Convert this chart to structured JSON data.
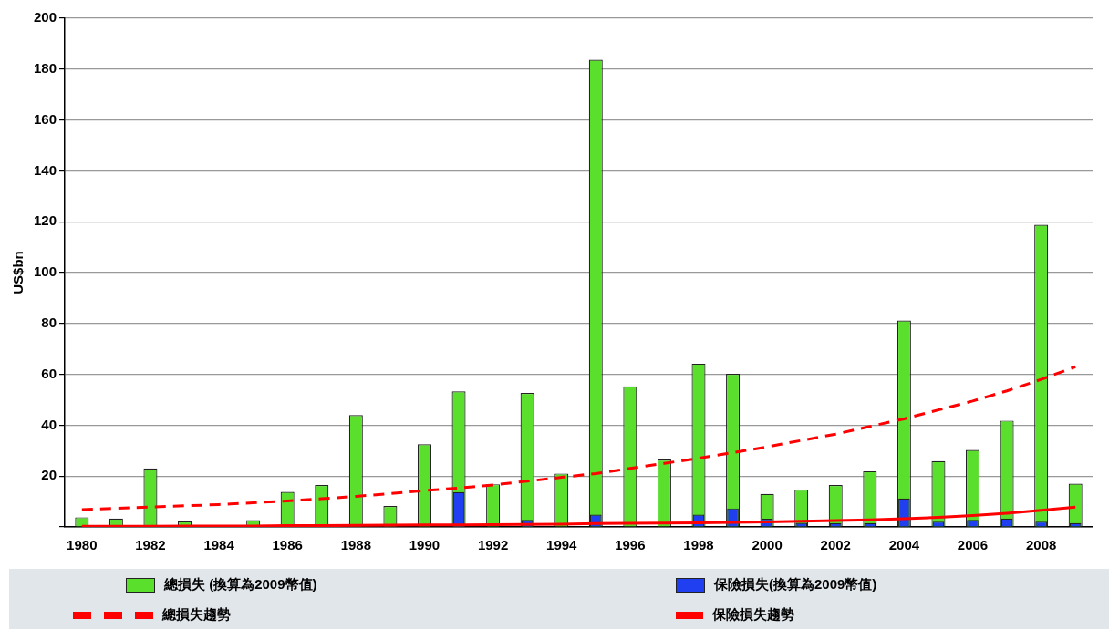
{
  "chart_data": {
    "type": "bar",
    "ylabel": "US$bn",
    "categories": [
      "1980",
      null,
      "1982",
      null,
      "1984",
      null,
      "1986",
      null,
      "1988",
      null,
      "1990",
      null,
      "1992",
      null,
      "1994",
      null,
      "1996",
      null,
      "1998",
      null,
      "2000",
      null,
      "2002",
      null,
      "2004",
      null,
      "2006",
      null,
      "2008",
      null
    ],
    "series": [
      {
        "name": "總損失 (換算為2009幣值)",
        "color": "#5ae02c",
        "values": [
          3.8,
          3.3,
          23,
          2.2,
          null,
          2.7,
          13.8,
          16.5,
          44,
          8.2,
          32.5,
          53.3,
          16.8,
          52.7,
          21,
          183.7,
          55.3,
          26.5,
          64.2,
          60.2,
          13,
          14.7,
          16.5,
          21.9,
          81.2,
          25.9,
          30.3,
          41.8,
          118.8,
          17
        ]
      },
      {
        "name": "保險損失(換算為2009幣值)",
        "color": "#1f3ff0",
        "values": [
          null,
          null,
          null,
          null,
          null,
          null,
          null,
          null,
          null,
          null,
          null,
          13.7,
          null,
          2.8,
          null,
          4.8,
          null,
          null,
          4.8,
          7.3,
          3.2,
          1.6,
          1.5,
          1.5,
          11.2,
          2.1,
          2.8,
          3.3,
          2.1,
          1.5
        ]
      },
      {
        "name": "總損失趨勢",
        "type": "line",
        "line_style": "dashed",
        "color": "#ff0000",
        "values": [
          6.8,
          7.3,
          7.8,
          8.3,
          8.8,
          9.5,
          10.2,
          11.1,
          12,
          13.1,
          14.3,
          15.3,
          16.5,
          18,
          19.5,
          21,
          23,
          25,
          27,
          29.2,
          31.5,
          34,
          36.5,
          39.5,
          42.5,
          46,
          49.5,
          53.5,
          58,
          63
        ]
      },
      {
        "name": "保險損失趨勢",
        "type": "line",
        "line_style": "solid",
        "color": "#ff0000",
        "values": [
          0.3,
          0.3,
          0.3,
          0.4,
          0.4,
          0.4,
          0.5,
          0.5,
          0.6,
          0.7,
          0.8,
          0.8,
          0.9,
          1,
          1.1,
          1.3,
          1.4,
          1.5,
          1.6,
          1.8,
          2,
          2.2,
          2.5,
          2.8,
          3.2,
          3.8,
          4.5,
          5.4,
          6.5,
          7.8
        ]
      }
    ],
    "ylim": [
      0,
      200
    ],
    "yticks": [
      {
        "value": 0,
        "label": null
      },
      20,
      40,
      60,
      80,
      100,
      120,
      140,
      160,
      180,
      200
    ],
    "grid": "y",
    "legend": "bottom",
    "marker": "none"
  }
}
